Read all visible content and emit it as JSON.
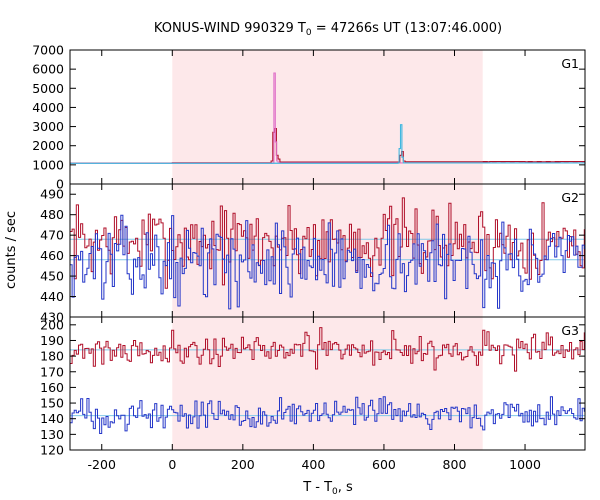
{
  "chart_data": {
    "type": "line",
    "title": {
      "prefix": "KONUS-WIND 990329 T",
      "sub": "0",
      "suffix": " = 47266s UT (13:07:46.000)"
    },
    "xlabel": {
      "prefix": "T - T",
      "sub": "0",
      "suffix": ", s"
    },
    "ylabel": "counts / sec",
    "xlim": [
      -290,
      1170
    ],
    "xticks": [
      -200,
      0,
      200,
      400,
      600,
      800,
      1000
    ],
    "shaded_interval": [
      0,
      880
    ],
    "colors": {
      "shade": "#fde8ea",
      "red_series": "#b0102a",
      "blue_series": "#2436c8",
      "pink_series": "#e070c8",
      "cyan_series": "#40b8e0",
      "background_fit": "#80c8e8",
      "frame": "#000000"
    },
    "panels": [
      {
        "label": "G1",
        "ylim": [
          0,
          7000
        ],
        "yticks": [
          0,
          1000,
          2000,
          3000,
          4000,
          5000,
          6000,
          7000
        ],
        "background_level": 1100,
        "series": [
          {
            "color_key": "red_series",
            "x": [
              -290,
              0,
              280,
              285,
              290,
              295,
              300,
              305,
              640,
              645,
              650,
              655,
              660,
              900,
              1000,
              1100,
              1170
            ],
            "y": [
              1090,
              1110,
              1200,
              2700,
              2900,
              1500,
              1300,
              1150,
              1150,
              1500,
              1700,
              1200,
              1160,
              1170,
              1160,
              1170,
              1180
            ]
          },
          {
            "color_key": "pink_series",
            "x": [
              -290,
              285,
              288,
              292,
              296,
              300,
              1170
            ],
            "y": [
              1080,
              1100,
              5800,
              2200,
              1200,
              1100,
              1120
            ]
          },
          {
            "color_key": "cyan_series",
            "x": [
              -290,
              640,
              643,
              647,
              651,
              655,
              1170
            ],
            "y": [
              1080,
              1100,
              1850,
              3100,
              1400,
              1100,
              1110
            ]
          }
        ]
      },
      {
        "label": "G2",
        "ylim": [
          430,
          495
        ],
        "yticks": [
          430,
          440,
          450,
          460,
          470,
          480,
          490
        ],
        "series": [
          {
            "color_key": "red_series",
            "mean": 467,
            "spread": 9,
            "seed": 7
          },
          {
            "color_key": "blue_series",
            "mean": 457,
            "spread": 9,
            "seed": 13
          }
        ],
        "fits": [
          {
            "color_key": "background_fit",
            "level": 468
          },
          {
            "color_key": "background_fit",
            "level": 458
          }
        ]
      },
      {
        "label": "G3",
        "ylim": [
          120,
          205
        ],
        "yticks": [
          120,
          130,
          140,
          150,
          160,
          170,
          180,
          190,
          200
        ],
        "series": [
          {
            "color_key": "red_series",
            "mean": 184,
            "spread": 5,
            "seed": 21
          },
          {
            "color_key": "blue_series",
            "mean": 143,
            "spread": 5,
            "seed": 33
          }
        ],
        "fits": [
          {
            "color_key": "background_fit",
            "level": 184
          },
          {
            "color_key": "background_fit",
            "level": 142
          }
        ]
      }
    ]
  }
}
